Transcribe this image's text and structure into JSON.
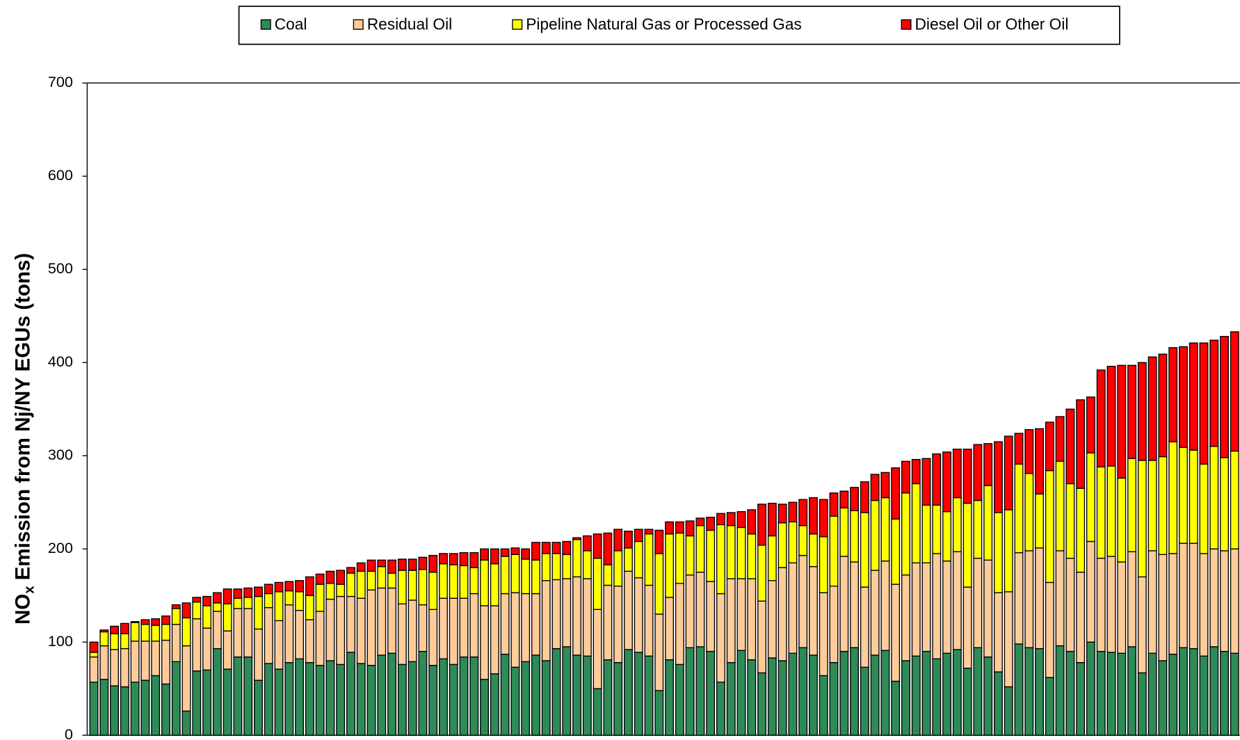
{
  "chart_data": {
    "type": "stacked-bar",
    "ylabel_parts": [
      "NO",
      "x",
      "Emission from Nj/NY EGUs (tons)"
    ],
    "ylim": [
      0,
      700
    ],
    "yticks": [
      0,
      100,
      200,
      300,
      400,
      500,
      600,
      700
    ],
    "legend": "top",
    "series": [
      {
        "name": "Coal",
        "color": "#2e8b57",
        "values": [
          57,
          60,
          53,
          52,
          57,
          59,
          64,
          55,
          79,
          26,
          69,
          70,
          93,
          71,
          84,
          84,
          59,
          77,
          71,
          78,
          82,
          78,
          75,
          80,
          76,
          89,
          77,
          75,
          86,
          88,
          76,
          79,
          90,
          75,
          82,
          76,
          84,
          84,
          60,
          66,
          87,
          73,
          79,
          86,
          80,
          93,
          95,
          86,
          85,
          50,
          81,
          78,
          92,
          89,
          85,
          48,
          81,
          76,
          94,
          95,
          90,
          57,
          78,
          91,
          81,
          67,
          83,
          80,
          88,
          94,
          86,
          64,
          78,
          90,
          94,
          73,
          86,
          91,
          58,
          80,
          85,
          90,
          82,
          88,
          92,
          72,
          94,
          84,
          68,
          52,
          98,
          94,
          93,
          62,
          96,
          90,
          78,
          100,
          90,
          89,
          88,
          95,
          67,
          88,
          80,
          87,
          94,
          93,
          85,
          95,
          90,
          88
        ]
      },
      {
        "name": "Residual Oil",
        "color": "#ffcc99",
        "values": [
          27,
          36,
          39,
          41,
          44,
          42,
          37,
          47,
          40,
          70,
          56,
          45,
          40,
          41,
          52,
          52,
          55,
          60,
          52,
          62,
          52,
          46,
          58,
          66,
          73,
          60,
          70,
          81,
          72,
          70,
          65,
          66,
          50,
          60,
          65,
          71,
          63,
          68,
          79,
          73,
          65,
          80,
          73,
          66,
          86,
          74,
          73,
          84,
          83,
          85,
          80,
          82,
          84,
          80,
          76,
          82,
          67,
          87,
          78,
          80,
          75,
          95,
          90,
          77,
          87,
          77,
          83,
          100,
          97,
          99,
          95,
          89,
          82,
          102,
          92,
          86,
          91,
          96,
          104,
          92,
          100,
          95,
          113,
          99,
          105,
          87,
          96,
          104,
          85,
          102,
          98,
          104,
          108,
          102,
          102,
          100,
          97,
          108,
          100,
          103,
          98,
          102,
          103,
          110,
          114,
          108,
          112,
          113,
          110,
          105,
          108,
          112
        ]
      },
      {
        "name": "Pipeline Natural Gas or Processed Gas",
        "color": "#ffff00",
        "values": [
          5,
          15,
          17,
          16,
          20,
          18,
          17,
          17,
          17,
          30,
          18,
          24,
          9,
          29,
          11,
          12,
          35,
          15,
          31,
          15,
          20,
          26,
          29,
          17,
          13,
          25,
          29,
          20,
          23,
          16,
          36,
          32,
          38,
          40,
          37,
          36,
          35,
          28,
          49,
          45,
          40,
          41,
          37,
          36,
          29,
          28,
          26,
          40,
          30,
          55,
          22,
          38,
          25,
          39,
          55,
          65,
          68,
          54,
          42,
          50,
          55,
          74,
          57,
          55,
          48,
          60,
          48,
          48,
          44,
          32,
          35,
          60,
          75,
          52,
          55,
          80,
          75,
          68,
          70,
          88,
          85,
          62,
          52,
          53,
          58,
          90,
          62,
          80,
          86,
          88,
          95,
          83,
          58,
          120,
          96,
          80,
          90,
          95,
          98,
          97,
          90,
          100,
          125,
          97,
          105,
          120,
          103,
          100,
          96,
          110,
          100,
          105
        ]
      },
      {
        "name": "Diesel Oil or Other Oil",
        "color": "#ff0000",
        "values": [
          11,
          2,
          8,
          11,
          1,
          5,
          7,
          9,
          4,
          16,
          5,
          10,
          11,
          16,
          10,
          10,
          10,
          10,
          10,
          10,
          12,
          20,
          11,
          13,
          15,
          6,
          9,
          12,
          7,
          14,
          12,
          12,
          13,
          18,
          11,
          12,
          14,
          16,
          12,
          16,
          8,
          7,
          11,
          19,
          12,
          12,
          14,
          2,
          16,
          26,
          34,
          23,
          18,
          13,
          5,
          25,
          13,
          12,
          16,
          8,
          14,
          12,
          14,
          17,
          26,
          44,
          35,
          20,
          21,
          28,
          39,
          40,
          25,
          18,
          25,
          33,
          28,
          27,
          55,
          34,
          26,
          50,
          55,
          64,
          52,
          58,
          60,
          45,
          76,
          79,
          33,
          47,
          70,
          52,
          48,
          80,
          95,
          60,
          104,
          107,
          121,
          100,
          105,
          111,
          110,
          101,
          108,
          115,
          130,
          114,
          130,
          128
        ]
      }
    ]
  }
}
